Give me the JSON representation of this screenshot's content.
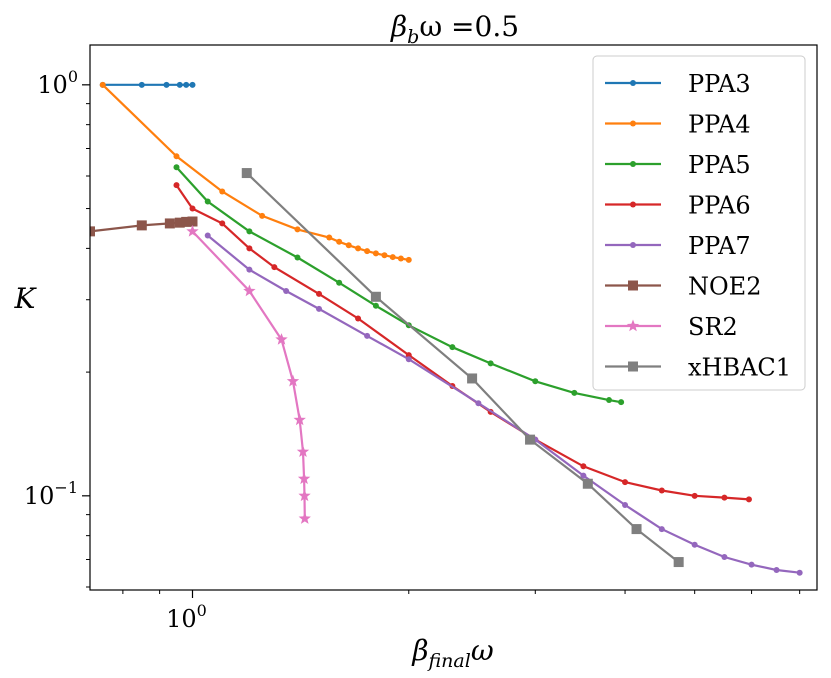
{
  "chart_data": {
    "type": "line",
    "title_parts": [
      "β",
      "b",
      "ω =0.5"
    ],
    "xlabel_parts": [
      "β",
      "final",
      "ω"
    ],
    "ylabel": "K",
    "xscale": "log",
    "yscale": "log",
    "xlim": [
      0.72,
      7.4
    ],
    "ylim": [
      0.059,
      1.25
    ],
    "x_ticks": [
      {
        "value": 1.0,
        "base": "10",
        "exp": "0"
      }
    ],
    "y_ticks": [
      {
        "value": 1.0,
        "base": "10",
        "exp": "0"
      },
      {
        "value": 0.1,
        "base": "10",
        "exp": "−1"
      }
    ],
    "legend_position": "upper right",
    "series": [
      {
        "name": "PPA3",
        "color": "#1f77b4",
        "marker": "dot",
        "x": [
          0.75,
          0.85,
          0.92,
          0.96,
          0.98,
          1.0
        ],
        "y": [
          1.0,
          1.0,
          1.0,
          1.0,
          1.0,
          1.0
        ]
      },
      {
        "name": "PPA4",
        "color": "#ff7f0e",
        "marker": "dot",
        "x": [
          0.75,
          0.95,
          1.1,
          1.25,
          1.4,
          1.55,
          1.6,
          1.65,
          1.7,
          1.75,
          1.8,
          1.85,
          1.9,
          1.95,
          2.0
        ],
        "y": [
          1.0,
          0.67,
          0.55,
          0.48,
          0.445,
          0.425,
          0.415,
          0.407,
          0.4,
          0.394,
          0.389,
          0.385,
          0.381,
          0.378,
          0.375
        ]
      },
      {
        "name": "PPA5",
        "color": "#2ca02c",
        "marker": "dot",
        "x": [
          0.95,
          1.05,
          1.2,
          1.4,
          1.6,
          1.8,
          2.0,
          2.3,
          2.6,
          3.0,
          3.4,
          3.8,
          3.95
        ],
        "y": [
          0.63,
          0.52,
          0.44,
          0.38,
          0.33,
          0.29,
          0.26,
          0.23,
          0.21,
          0.19,
          0.178,
          0.171,
          0.169
        ]
      },
      {
        "name": "PPA6",
        "color": "#d62728",
        "marker": "dot",
        "x": [
          0.95,
          1.0,
          1.1,
          1.2,
          1.3,
          1.5,
          1.7,
          2.0,
          2.3,
          2.6,
          3.0,
          3.5,
          4.0,
          4.5,
          5.0,
          5.5,
          5.95
        ],
        "y": [
          0.57,
          0.5,
          0.46,
          0.4,
          0.36,
          0.31,
          0.27,
          0.22,
          0.185,
          0.16,
          0.137,
          0.118,
          0.108,
          0.103,
          0.1,
          0.099,
          0.098
        ]
      },
      {
        "name": "PPA7",
        "color": "#9467bd",
        "marker": "dot",
        "x": [
          1.05,
          1.2,
          1.35,
          1.5,
          1.75,
          2.0,
          2.5,
          3.0,
          3.5,
          4.0,
          4.5,
          5.0,
          5.5,
          6.0,
          6.5,
          7.0
        ],
        "y": [
          0.43,
          0.355,
          0.315,
          0.285,
          0.245,
          0.215,
          0.168,
          0.137,
          0.112,
          0.095,
          0.083,
          0.076,
          0.071,
          0.068,
          0.066,
          0.065
        ]
      },
      {
        "name": "NOE2",
        "color": "#8c564b",
        "marker": "square",
        "x": [
          0.72,
          0.85,
          0.93,
          0.96,
          0.98,
          1.0
        ],
        "y": [
          0.44,
          0.455,
          0.46,
          0.462,
          0.464,
          0.465
        ]
      },
      {
        "name": "SR2",
        "color": "#e377c2",
        "marker": "star",
        "x": [
          1.0,
          1.2,
          1.33,
          1.38,
          1.41,
          1.425,
          1.43,
          1.432,
          1.433
        ],
        "y": [
          0.44,
          0.315,
          0.24,
          0.19,
          0.153,
          0.128,
          0.11,
          0.1,
          0.088
        ]
      },
      {
        "name": "xHBAC1",
        "color": "#7f7f7f",
        "marker": "square",
        "x": [
          1.19,
          1.8,
          2.45,
          2.95,
          3.55,
          4.15,
          4.75
        ],
        "y": [
          0.61,
          0.305,
          0.193,
          0.137,
          0.107,
          0.083,
          0.069
        ]
      }
    ]
  }
}
